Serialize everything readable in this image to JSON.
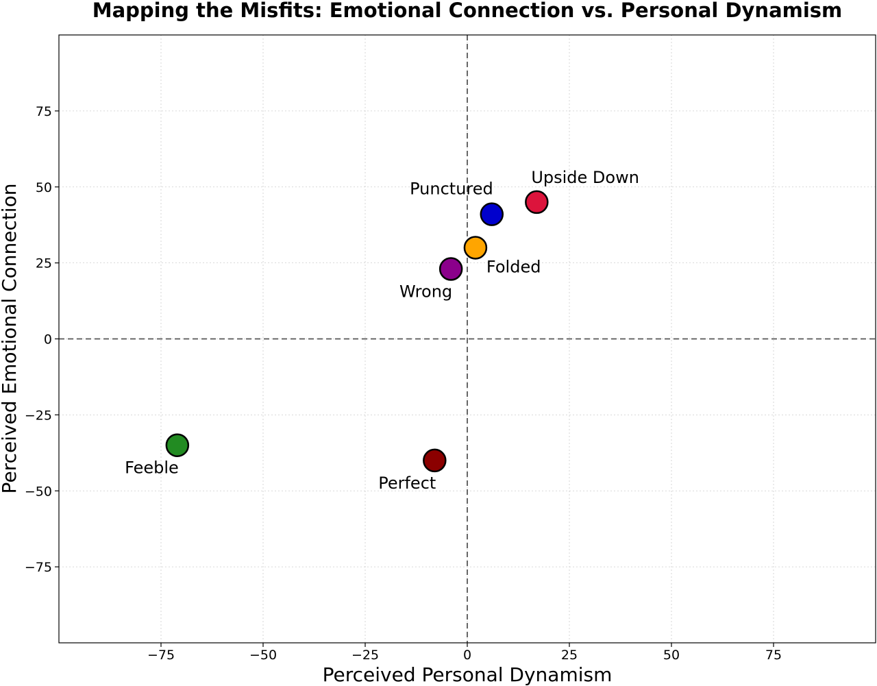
{
  "chart_data": {
    "type": "scatter",
    "title": "Mapping the Misfits: Emotional Connection vs. Personal Dynamism",
    "xlabel": "Perceived Personal Dynamism",
    "ylabel": "Perceived Emotional Connection",
    "xlim": [
      -100,
      100
    ],
    "ylim": [
      -100,
      100
    ],
    "xticks": [
      -75,
      -50,
      -25,
      0,
      25,
      50,
      75
    ],
    "yticks": [
      -75,
      -50,
      -25,
      0,
      25,
      50,
      75
    ],
    "xtick_labels": [
      "−75",
      "−50",
      "−25",
      "0",
      "25",
      "50",
      "75"
    ],
    "ytick_labels": [
      "−75",
      "−50",
      "−25",
      "0",
      "25",
      "50",
      "75"
    ],
    "grid": true,
    "reference_lines": {
      "x": 0,
      "y": 0
    },
    "points": [
      {
        "label": "Upside Down",
        "x": 17,
        "y": 45,
        "color": "#dc143c",
        "label_position": "above-right"
      },
      {
        "label": "Punctured",
        "x": 6,
        "y": 41,
        "color": "#0000cd",
        "label_position": "above-left"
      },
      {
        "label": "Folded",
        "x": 2,
        "y": 30,
        "color": "#ffa500",
        "label_position": "below-right"
      },
      {
        "label": "Wrong",
        "x": -4,
        "y": 23,
        "color": "#8b008b",
        "label_position": "below-left"
      },
      {
        "label": "Feeble",
        "x": -71,
        "y": -35,
        "color": "#228b22",
        "label_position": "below-left"
      },
      {
        "label": "Perfect",
        "x": -8,
        "y": -40,
        "color": "#8b0000",
        "label_position": "below-left"
      }
    ]
  }
}
